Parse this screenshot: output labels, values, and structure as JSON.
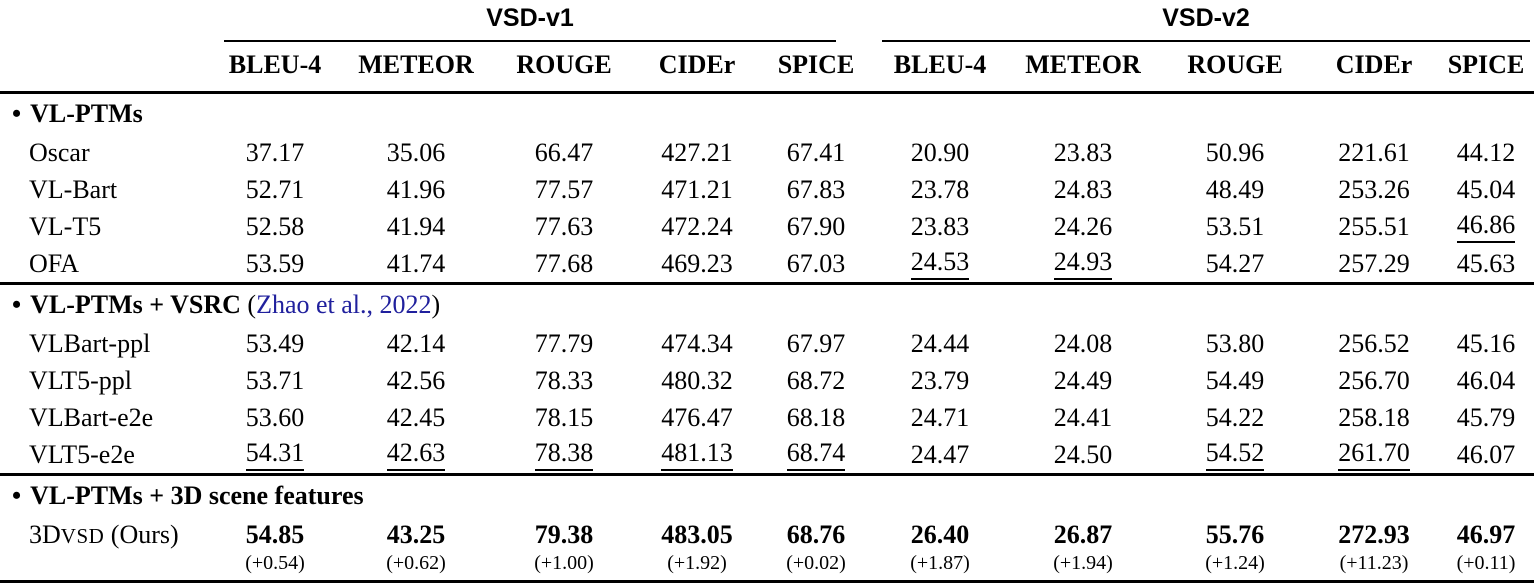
{
  "accent": {
    "citation_color": "#20209D",
    "rule_color": "#000000"
  },
  "table": {
    "bullet": "•",
    "groups": [
      {
        "label": "VSD-v1",
        "metrics": [
          "BLEU-4",
          "METEOR",
          "ROUGE",
          "CIDEr",
          "SPICE"
        ]
      },
      {
        "label": "VSD-v2",
        "metrics": [
          "BLEU-4",
          "METEOR",
          "ROUGE",
          "CIDEr",
          "SPICE"
        ]
      }
    ],
    "sections": [
      {
        "title": "VL-PTMs",
        "rows": [
          {
            "label": "Oscar",
            "values": [
              "37.17",
              "35.06",
              "66.47",
              "427.21",
              "67.41",
              "20.90",
              "23.83",
              "50.96",
              "221.61",
              "44.12"
            ],
            "underline": []
          },
          {
            "label": "VL-Bart",
            "values": [
              "52.71",
              "41.96",
              "77.57",
              "471.21",
              "67.83",
              "23.78",
              "24.83",
              "48.49",
              "253.26",
              "45.04"
            ],
            "underline": []
          },
          {
            "label": "VL-T5",
            "values": [
              "52.58",
              "41.94",
              "77.63",
              "472.24",
              "67.90",
              "23.83",
              "24.26",
              "53.51",
              "255.51",
              "46.86"
            ],
            "underline": [
              9
            ]
          },
          {
            "label": "OFA",
            "values": [
              "53.59",
              "41.74",
              "77.68",
              "469.23",
              "67.03",
              "24.53",
              "24.93",
              "54.27",
              "257.29",
              "45.63"
            ],
            "underline": [
              5,
              6
            ]
          }
        ]
      },
      {
        "title": "VL-PTMs + VSRC",
        "citation_prefix": " (",
        "citation": "Zhao et al., 2022",
        "citation_suffix": ")",
        "rows": [
          {
            "label": "VLBart-ppl",
            "values": [
              "53.49",
              "42.14",
              "77.79",
              "474.34",
              "67.97",
              "24.44",
              "24.08",
              "53.80",
              "256.52",
              "45.16"
            ],
            "underline": []
          },
          {
            "label": "VLT5-ppl",
            "values": [
              "53.71",
              "42.56",
              "78.33",
              "480.32",
              "68.72",
              "23.79",
              "24.49",
              "54.49",
              "256.70",
              "46.04"
            ],
            "underline": []
          },
          {
            "label": "VLBart-e2e",
            "values": [
              "53.60",
              "42.45",
              "78.15",
              "476.47",
              "68.18",
              "24.71",
              "24.41",
              "54.22",
              "258.18",
              "45.79"
            ],
            "underline": []
          },
          {
            "label": "VLT5-e2e",
            "values": [
              "54.31",
              "42.63",
              "78.38",
              "481.13",
              "68.74",
              "24.47",
              "24.50",
              "54.52",
              "261.70",
              "46.07"
            ],
            "underline": [
              0,
              1,
              2,
              3,
              4,
              7,
              8
            ]
          }
        ]
      },
      {
        "title": "VL-PTMs + 3D scene features",
        "rows": [
          {
            "label_parts": {
              "pre": "3D",
              "sc": "VSD",
              "post": " (Ours)"
            },
            "values": [
              "54.85",
              "43.25",
              "79.38",
              "483.05",
              "68.76",
              "26.40",
              "26.87",
              "55.76",
              "272.93",
              "46.97"
            ],
            "deltas": [
              "(+0.54)",
              "(+0.62)",
              "(+1.00)",
              "(+1.92)",
              "(+0.02)",
              "(+1.87)",
              "(+1.94)",
              "(+1.24)",
              "(+11.23)",
              "(+0.11)"
            ]
          }
        ]
      }
    ]
  }
}
